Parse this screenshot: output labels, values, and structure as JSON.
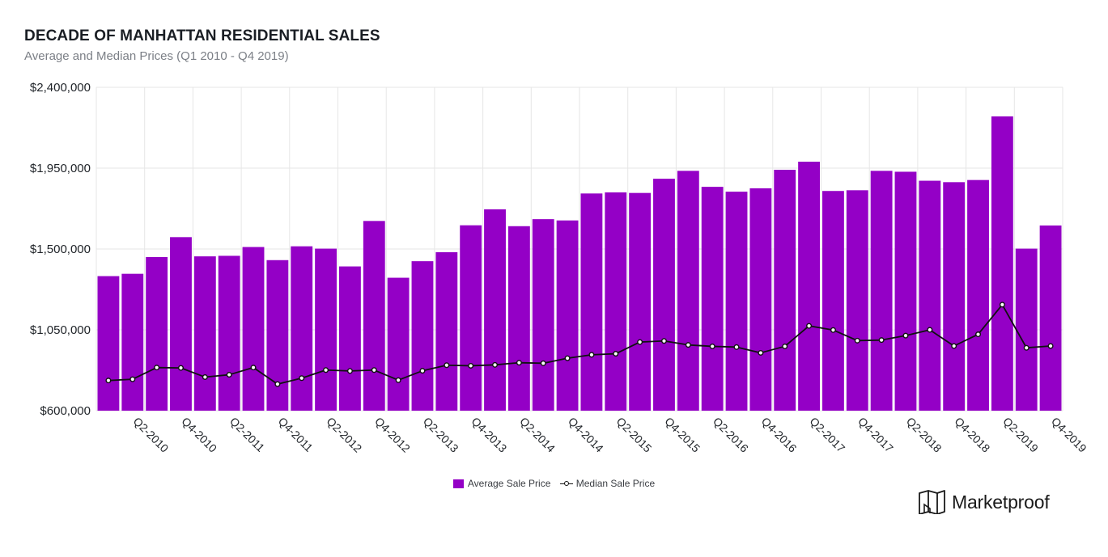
{
  "header": {
    "title": "DECADE OF MANHATTAN RESIDENTIAL SALES",
    "subtitle": "Average and Median Prices (Q1 2010 - Q4 2019)"
  },
  "brand": {
    "name": "Marketproof",
    "icon": "marketproof-logo-icon"
  },
  "colors": {
    "bar": "#9400c6",
    "line": "#111111",
    "marker_fill": "#ffffff",
    "grid": "#e6e6e6"
  },
  "legend": {
    "items": [
      {
        "label": "Average Sale Price",
        "kind": "bar"
      },
      {
        "label": "Median Sale Price",
        "kind": "line"
      }
    ]
  },
  "chart_data": {
    "type": "bar",
    "grid": true,
    "legend_position": "bottom",
    "ylim": [
      600000,
      2400000
    ],
    "yticks": [
      600000,
      1050000,
      1500000,
      1950000,
      2400000
    ],
    "ytick_labels": [
      "$600,000",
      "$1,050,000",
      "$1,500,000",
      "$1,950,000",
      "$2,400,000"
    ],
    "categories": [
      "Q1-2010",
      "Q2-2010",
      "Q3-2010",
      "Q4-2010",
      "Q1-2011",
      "Q2-2011",
      "Q3-2011",
      "Q4-2011",
      "Q1-2012",
      "Q2-2012",
      "Q3-2012",
      "Q4-2012",
      "Q1-2013",
      "Q2-2013",
      "Q3-2013",
      "Q4-2013",
      "Q1-2014",
      "Q2-2014",
      "Q3-2014",
      "Q4-2014",
      "Q1-2015",
      "Q2-2015",
      "Q3-2015",
      "Q4-2015",
      "Q1-2016",
      "Q2-2016",
      "Q3-2016",
      "Q4-2016",
      "Q1-2017",
      "Q2-2017",
      "Q3-2017",
      "Q4-2017",
      "Q1-2018",
      "Q2-2018",
      "Q3-2018",
      "Q4-2018",
      "Q1-2019",
      "Q2-2019",
      "Q3-2019",
      "Q4-2019"
    ],
    "xtick_labels": [
      "Q2-2010",
      "Q4-2010",
      "Q2-2011",
      "Q4-2011",
      "Q2-2012",
      "Q4-2012",
      "Q2-2013",
      "Q4-2013",
      "Q2-2014",
      "Q4-2014",
      "Q2-2015",
      "Q4-2015",
      "Q2-2016",
      "Q4-2016",
      "Q2-2017",
      "Q4-2017",
      "Q2-2018",
      "Q4-2018",
      "Q2-2019",
      "Q4-2019"
    ],
    "series": [
      {
        "name": "Average Sale Price",
        "type": "bar",
        "values": [
          1349000,
          1362000,
          1455000,
          1566000,
          1459000,
          1462000,
          1511000,
          1438000,
          1515000,
          1502000,
          1403000,
          1656000,
          1340000,
          1432000,
          1482000,
          1632000,
          1721000,
          1627000,
          1666000,
          1659000,
          1809000,
          1815000,
          1812000,
          1891000,
          1935000,
          1846000,
          1819000,
          1838000,
          1941000,
          1986000,
          1823000,
          1827000,
          1935000,
          1930000,
          1880000,
          1872000,
          1884000,
          2238000,
          1502000,
          1631000
        ]
      },
      {
        "name": "Median Sale Price",
        "type": "line",
        "values": [
          768000,
          775000,
          840000,
          838000,
          787000,
          800000,
          840000,
          748000,
          781000,
          826000,
          821000,
          826000,
          770000,
          822000,
          853000,
          850000,
          855000,
          867000,
          864000,
          892000,
          911000,
          917000,
          982000,
          988000,
          966000,
          958000,
          954000,
          922000,
          958000,
          1072000,
          1049000,
          990000,
          993000,
          1018000,
          1050000,
          960000,
          1025000,
          1190000,
          950000,
          960000
        ]
      }
    ]
  }
}
